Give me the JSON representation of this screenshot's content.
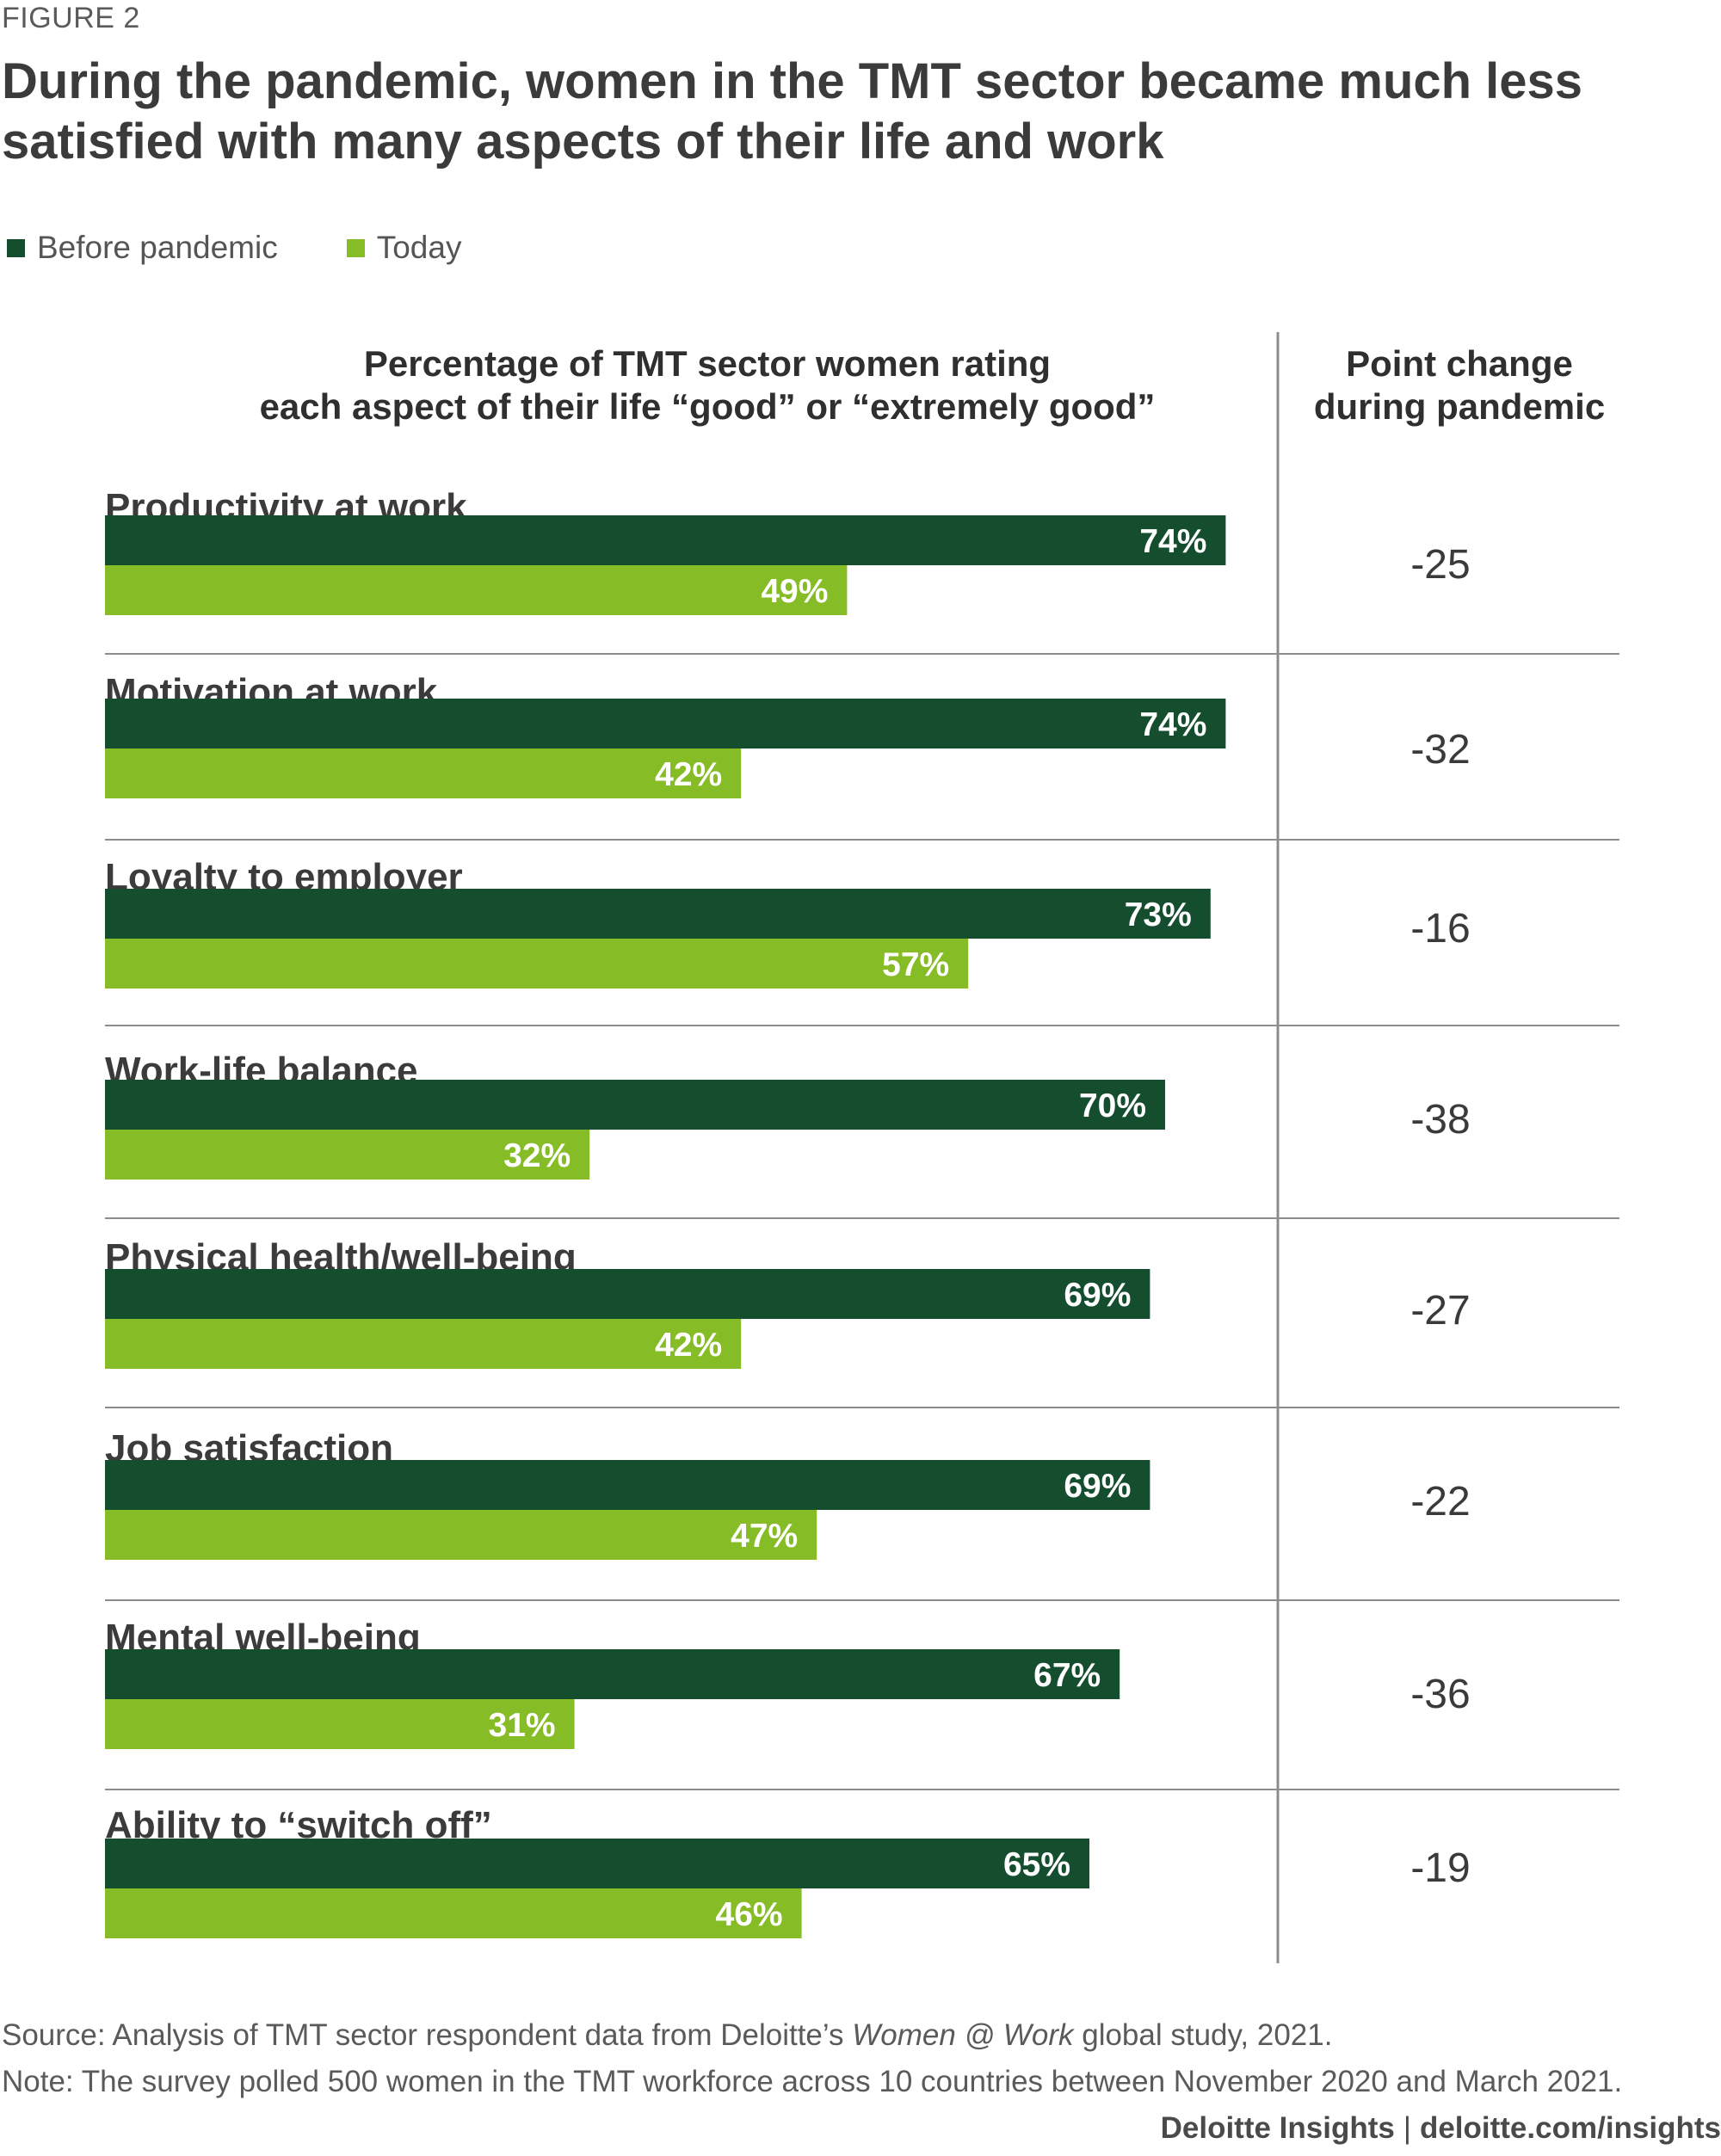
{
  "figure_label": "FIGURE 2",
  "chart_data": {
    "type": "bar",
    "orientation": "horizontal",
    "title": "During the pandemic, women in the TMT sector became much less satisfied with many aspects of their life and work",
    "xlabel": "Percentage of TMT sector women rating each aspect of their life “good” or “extremely good”",
    "ylabel": "",
    "xlim": [
      0,
      100
    ],
    "categories": [
      "Productivity at work",
      "Motivation at work",
      "Loyalty to employer",
      "Work-life balance",
      "Physical health/well-being",
      "Job satisfaction",
      "Mental well-being",
      "Ability to “switch off”"
    ],
    "series": [
      {
        "name": "Before pandemic",
        "color": "#154d2f",
        "values": [
          74,
          74,
          73,
          70,
          69,
          69,
          67,
          65
        ],
        "labels": [
          "74%",
          "74%",
          "73%",
          "70%",
          "69%",
          "69%",
          "67%",
          "65%"
        ]
      },
      {
        "name": "Today",
        "color": "#86bc25",
        "values": [
          49,
          42,
          57,
          32,
          42,
          47,
          31,
          46
        ],
        "labels": [
          "49%",
          "42%",
          "57%",
          "32%",
          "42%",
          "47%",
          "31%",
          "46%"
        ]
      }
    ],
    "change_header": "Point change during pandemic",
    "change_values": [
      "-25",
      "-32",
      "-16",
      "-38",
      "-27",
      "-22",
      "-36",
      "-19"
    ],
    "legend": "top-left",
    "grid": false
  },
  "legend": {
    "before": "Before pandemic",
    "today": "Today"
  },
  "header": {
    "left_line1": "Percentage of TMT sector women rating",
    "left_line2": "each aspect of their life “good” or “extremely good”",
    "right_line1": "Point change",
    "right_line2": "during pandemic"
  },
  "footer": {
    "source_prefix": "Source: Analysis of TMT sector respondent data from Deloitte’s ",
    "source_italic": "Women @ Work",
    "source_suffix": " global study, 2021.",
    "note": "Note: The survey polled 500 women in the TMT workforce across 10 countries between November 2020 and March 2021.",
    "brand": "Deloitte Insights",
    "separator": "|",
    "url": "deloitte.com/insights"
  },
  "colors": {
    "before": "#154d2f",
    "today": "#86bc25",
    "divider": "#8c8c8c",
    "text": "#3a3a3a"
  }
}
